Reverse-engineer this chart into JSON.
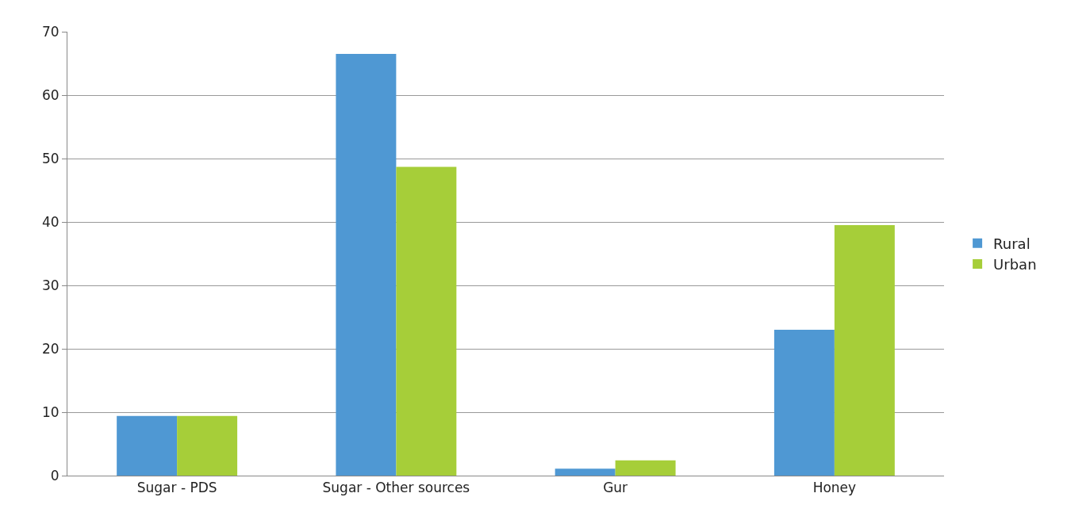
{
  "chart_data": {
    "type": "bar",
    "categories": [
      "Sugar - PDS",
      "Sugar - Other sources",
      "Gur",
      "Honey"
    ],
    "series": [
      {
        "name": "Rural",
        "color": "#4f98d3",
        "values": [
          9.4,
          66.5,
          1.1,
          23
        ]
      },
      {
        "name": "Urban",
        "color": "#a6ce39",
        "values": [
          9.4,
          48.7,
          2.4,
          39.5
        ]
      }
    ],
    "ylim": [
      0,
      70
    ],
    "yticks": [
      0,
      10,
      20,
      30,
      40,
      50,
      60,
      70
    ],
    "grid": "y",
    "legend": "right"
  }
}
